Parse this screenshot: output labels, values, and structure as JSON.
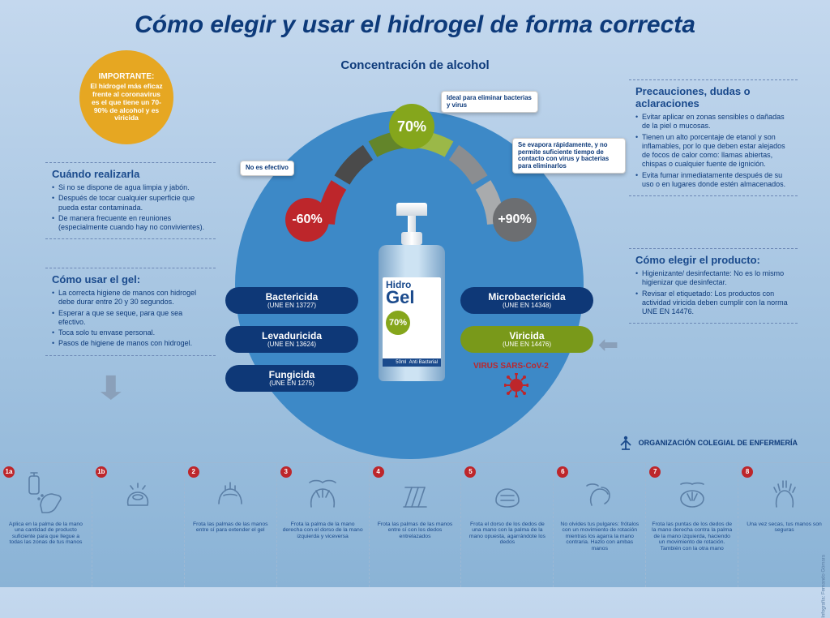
{
  "title": "Cómo elegir y usar el hidrogel de forma correcta",
  "important": {
    "head": "IMPORTANTE:",
    "body": "El hidrogel más eficaz frente al coronavirus es el que tiene un 70-90% de alcohol y es viricida"
  },
  "subtitle": "Concentración de alcohol",
  "gauge": {
    "low": {
      "value": "-60%",
      "color": "#bd262b",
      "note": "No es efectivo"
    },
    "mid": {
      "value": "70%",
      "color": "#85a61c",
      "note": "Ideal para eliminar bacterias y virus"
    },
    "high": {
      "value": "+90%",
      "color": "#6c6e71",
      "note": "Se evapora rápidamente, y no permite suficiente tiempo de contacto con virus y bacterias para eliminarlos"
    },
    "arc_colors": [
      "#bd262b",
      "#4a4a4a",
      "#63852a",
      "#9bb848",
      "#8b8d90",
      "#a9abad"
    ]
  },
  "sections": {
    "when": {
      "title": "Cuándo realizarla",
      "items": [
        "Si no se dispone de agua limpia y jabón.",
        "Después de tocar cualquier superficie que pueda estar contaminada.",
        "De manera frecuente en reuniones (especialmente cuando hay no convivientes)."
      ]
    },
    "how": {
      "title": "Cómo usar el gel:",
      "items": [
        "La correcta higiene de manos con hidrogel debe durar entre 20 y 30 segundos.",
        "Esperar a que se seque, para que sea efectivo.",
        "Toca solo tu envase personal.",
        "Pasos de higiene de manos con hidrogel."
      ]
    },
    "prec": {
      "title": "Precauciones, dudas o aclaraciones",
      "items": [
        "Evitar aplicar en zonas sensibles o dañadas de la piel o mucosas.",
        "Tienen un alto porcentaje de etanol y son inflamables, por lo que deben estar alejados de focos de calor como: llamas abiertas, chispas o cualquier fuente de ignición.",
        "Evita fumar inmediatamente después de su uso o en lugares donde estén almacenados."
      ]
    },
    "choose": {
      "title": "Cómo elegir el producto:",
      "items": [
        "Higienizante/ desinfectante: No es lo mismo higienizar que desinfectar.",
        "Revisar el etiquetado: Los productos con actividad viricida deben cumplir con la norma UNE EN 14476."
      ]
    }
  },
  "pills": {
    "bac": {
      "name": "Bactericida",
      "norm": "(UNE EN 13727)"
    },
    "lev": {
      "name": "Levaduricida",
      "norm": "(UNE EN 13624)"
    },
    "fun": {
      "name": "Fungicida",
      "norm": "(UNE EN 1275)"
    },
    "mic": {
      "name": "Microbactericida",
      "norm": "(UNE EN 14348)"
    },
    "vir": {
      "name": "Viricida",
      "norm": "(UNE EN 14476)"
    }
  },
  "virus_label": "VIRUS SARS-CoV-2",
  "bottle": {
    "brand1": "Hidro",
    "brand2": "Gel",
    "pct": "70%",
    "size": "50ml",
    "tag": "Anti Bacterial"
  },
  "org": "ORGANIZACIÓN COLEGIAL DE ENFERMERÍA",
  "credit": "Infografía: Fernando Gómara",
  "steps": [
    {
      "num": "1a",
      "cap": "Aplica en la palma de la mano una cantidad de producto suficiente para que llegue a todas las zonas de tus manos"
    },
    {
      "num": "1b",
      "cap": ""
    },
    {
      "num": "2",
      "cap": "Frota las palmas de las manos entre sí para extender el gel"
    },
    {
      "num": "3",
      "cap": "Frota la palma de la mano derecha con el dorso de la mano izquierda y viceversa"
    },
    {
      "num": "4",
      "cap": "Frota las palmas de las manos entre sí con los dedos entrelazados"
    },
    {
      "num": "5",
      "cap": "Frota el dorso de los dedos de una mano con la palma de la mano opuesta, agarrándote los dedos"
    },
    {
      "num": "6",
      "cap": "No olvides tus pulgares: frótalos con un movimiento de rotación mientras los agarra la mano contraria. Hazlo con ambas manos"
    },
    {
      "num": "7",
      "cap": "Frota las puntas de los dedos de la mano derecha contra la palma de la mano izquierda, haciendo un movimiento de rotación. También con la otra mano"
    },
    {
      "num": "8",
      "cap": "Una vez secas, tus manos son seguras"
    }
  ]
}
